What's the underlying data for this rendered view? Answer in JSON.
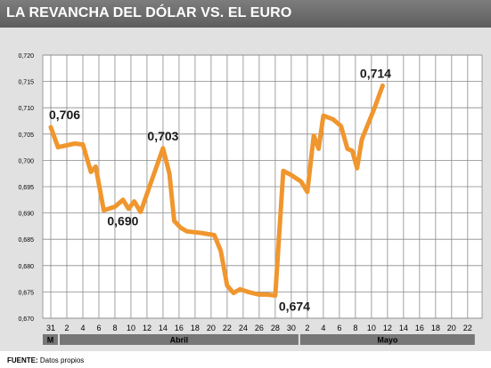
{
  "header": {
    "title": "LA REVANCHA DEL DÓLAR VS. EL EURO"
  },
  "source": {
    "label": "FUENTE:",
    "text": "Datos propios"
  },
  "colors": {
    "line": "#f0962e",
    "header_bg": "#6b6b6b",
    "panel_bg": "#e1e1e1",
    "month_bar": "#777777"
  },
  "chart_data": {
    "type": "line",
    "title": "LA REVANCHA DEL DÓLAR VS. EL EURO",
    "xlabel": "",
    "ylabel": "",
    "ylim": [
      0.67,
      0.72
    ],
    "grid": true,
    "y_ticks": [
      "0,670",
      "0,675",
      "0,680",
      "0,685",
      "0,690",
      "0,695",
      "0,700",
      "0,705",
      "0,710",
      "0,715",
      "0,720"
    ],
    "x_ticks": [
      "31",
      "2",
      "4",
      "6",
      "8",
      "10",
      "12",
      "14",
      "16",
      "18",
      "20",
      "22",
      "24",
      "26",
      "28",
      "30",
      "2",
      "4",
      "6",
      "8",
      "10",
      "12",
      "14",
      "16",
      "18",
      "20",
      "22"
    ],
    "months": [
      {
        "label": "M",
        "from": 0,
        "to": 0
      },
      {
        "label": "Abril",
        "from": 1,
        "to": 15
      },
      {
        "label": "Mayo",
        "from": 16,
        "to": 26
      }
    ],
    "series": [
      {
        "values": [
          [
            0.0,
            0.7063
          ],
          [
            0.45,
            0.7025
          ],
          [
            1.5,
            0.7032
          ],
          [
            2.0,
            0.703
          ],
          [
            2.5,
            0.6978
          ],
          [
            2.8,
            0.6988
          ],
          [
            3.3,
            0.6905
          ],
          [
            4.0,
            0.6912
          ],
          [
            4.5,
            0.6925
          ],
          [
            4.85,
            0.6908
          ],
          [
            5.2,
            0.6922
          ],
          [
            5.6,
            0.6902
          ],
          [
            7.0,
            0.7023
          ],
          [
            7.4,
            0.6975
          ],
          [
            7.7,
            0.6885
          ],
          [
            8.1,
            0.6872
          ],
          [
            8.5,
            0.6865
          ],
          [
            9.4,
            0.6862
          ],
          [
            10.2,
            0.6858
          ],
          [
            10.6,
            0.6828
          ],
          [
            11.0,
            0.6762
          ],
          [
            11.4,
            0.6748
          ],
          [
            11.8,
            0.6755
          ],
          [
            12.3,
            0.675
          ],
          [
            13.0,
            0.6745
          ],
          [
            13.5,
            0.6745
          ],
          [
            14.0,
            0.6743
          ],
          [
            14.5,
            0.698
          ],
          [
            15.0,
            0.6972
          ],
          [
            15.6,
            0.696
          ],
          [
            16.0,
            0.694
          ],
          [
            16.4,
            0.7047
          ],
          [
            16.7,
            0.7022
          ],
          [
            17.0,
            0.7085
          ],
          [
            17.6,
            0.7078
          ],
          [
            18.1,
            0.7065
          ],
          [
            18.5,
            0.7022
          ],
          [
            18.8,
            0.7018
          ],
          [
            19.1,
            0.6985
          ],
          [
            19.4,
            0.704
          ],
          [
            20.2,
            0.71
          ],
          [
            20.7,
            0.7142
          ]
        ]
      }
    ],
    "data_labels": [
      {
        "text": "0,706",
        "x": 0.0,
        "y": 0.7063,
        "pos": "above-right"
      },
      {
        "text": "0,690",
        "x": 3.3,
        "y": 0.6905,
        "pos": "below-right"
      },
      {
        "text": "0,703",
        "x": 7.0,
        "y": 0.7023,
        "pos": "above"
      },
      {
        "text": "0,674",
        "x": 14.0,
        "y": 0.6743,
        "pos": "below-right"
      },
      {
        "text": "0,714",
        "x": 20.7,
        "y": 0.7142,
        "pos": "above"
      }
    ]
  }
}
